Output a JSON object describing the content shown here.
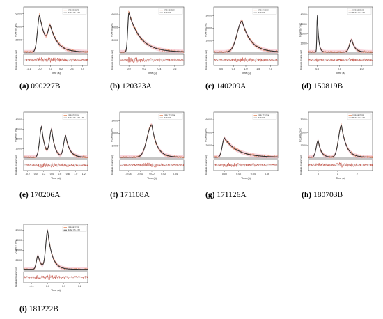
{
  "colors": {
    "data": "#e07a4a",
    "model": "#333333",
    "band": "#f2b3c1",
    "resid": "#c0392b",
    "axis": "#444444"
  },
  "chart_data": [
    {
      "type": "line",
      "label": "(a)",
      "burst": "090227B",
      "legend": [
        "GRB 090227B",
        "Model: P1 + P2"
      ],
      "xticks": [
        "-0.1",
        "0.0",
        "0.1",
        "0.2",
        "0.3",
        "0.4"
      ],
      "xlim": [
        -0.15,
        0.45
      ],
      "yticks": [
        "20000",
        "40000",
        "60000"
      ],
      "ylim": [
        0,
        70000
      ],
      "ylabel": "Counts / sec",
      "xlabel": "Time (s)",
      "resid_label": "Residuals (Counts / sec)",
      "pulses": [
        {
          "A": 56000,
          "mu": 0.0,
          "s": 0.02,
          "d": 0.06
        },
        {
          "A": 30000,
          "mu": 0.1,
          "s": 0.02,
          "d": 0.07
        }
      ]
    },
    {
      "type": "line",
      "label": "(b)",
      "burst": "120323A",
      "legend": [
        "GRB 120323A",
        "Model: P"
      ],
      "xticks": [
        "0.0",
        "0.2",
        "0.4",
        "0.6"
      ],
      "xlim": [
        -0.12,
        0.72
      ],
      "yticks": [
        "20000",
        "40000",
        "60000"
      ],
      "ylim": [
        0,
        72000
      ],
      "ylabel": "Counts / sec",
      "xlabel": "Time (s)",
      "resid_label": "Residuals (Counts / sec)",
      "pulses": [
        {
          "A": 62000,
          "mu": 0.0,
          "s": 0.015,
          "d": 0.15
        }
      ]
    },
    {
      "type": "line",
      "label": "(c)",
      "burst": "140209A",
      "legend": [
        "GRB 140209A",
        "Model: P"
      ],
      "xticks": [
        "0.0",
        "0.5",
        "1.0",
        "1.5",
        "2.0"
      ],
      "xlim": [
        -0.3,
        2.3
      ],
      "yticks": [
        "10000",
        "20000",
        "30000"
      ],
      "ylim": [
        0,
        37000
      ],
      "ylabel": "Counts / sec",
      "xlabel": "Time (s)",
      "resid_label": "Residuals (Counts / sec)",
      "pulses": [
        {
          "A": 25000,
          "mu": 0.85,
          "s": 0.2,
          "d": 0.35
        }
      ]
    },
    {
      "type": "line",
      "label": "(d)",
      "burst": "150819B",
      "legend": [
        "GRB 150819B",
        "Model: P1 + P2"
      ],
      "xticks": [
        "0.0",
        "0.5",
        "1.0"
      ],
      "xlim": [
        -0.2,
        1.25
      ],
      "yticks": [
        "10000",
        "20000",
        "30000",
        "40000"
      ],
      "ylim": [
        0,
        48000
      ],
      "ylabel": "Counts / sec",
      "xlabel": "Time (s)",
      "resid_label": "Residuals (Counts / sec)",
      "pulses": [
        {
          "A": 40000,
          "mu": 0.0,
          "s": 0.01,
          "d": 0.03
        },
        {
          "A": 13000,
          "mu": 0.78,
          "s": 0.05,
          "d": 0.07
        }
      ]
    },
    {
      "type": "line",
      "label": "(e)",
      "burst": "170206A",
      "legend": [
        "GRB 170206A",
        "Model: P1 + P2 + P3"
      ],
      "xticks": [
        "-0.2",
        "0.0",
        "0.2",
        "0.4",
        "0.6",
        "0.8",
        "1.0",
        "1.2"
      ],
      "xlim": [
        -0.3,
        1.3
      ],
      "yticks": [
        "10000",
        "20000",
        "30000",
        "40000"
      ],
      "ylim": [
        0,
        48000
      ],
      "ylabel": "Counts / sec",
      "xlabel": "Time (s)",
      "resid_label": "Residuals (Counts / sec)",
      "pulses": [
        {
          "A": 32000,
          "mu": 0.15,
          "s": 0.05,
          "d": 0.08
        },
        {
          "A": 28000,
          "mu": 0.4,
          "s": 0.05,
          "d": 0.08
        },
        {
          "A": 22000,
          "mu": 0.75,
          "s": 0.05,
          "d": 0.1
        }
      ]
    },
    {
      "type": "line",
      "label": "(f)",
      "burst": "171108A",
      "legend": [
        "GRB 171108A",
        "Model: P"
      ],
      "xticks": [
        "-0.04",
        "-0.02",
        "0.00",
        "0.02",
        "0.04"
      ],
      "xlim": [
        -0.055,
        0.055
      ],
      "yticks": [
        "10000",
        "20000",
        "30000"
      ],
      "ylim": [
        0,
        37000
      ],
      "ylabel": "Counts / sec",
      "xlabel": "Time (s)",
      "resid_label": "Residuals (Counts / sec)",
      "pulses": [
        {
          "A": 26000,
          "mu": 0.0,
          "s": 0.008,
          "d": 0.009
        }
      ]
    },
    {
      "type": "line",
      "label": "(g)",
      "burst": "171126A",
      "legend": [
        "GRB 171126A",
        "Model: P"
      ],
      "xticks": [
        "0.00",
        "0.02",
        "0.04",
        "0.06"
      ],
      "xlim": [
        -0.015,
        0.075
      ],
      "yticks": [
        "20000",
        "40000",
        "60000"
      ],
      "ylim": [
        0,
        72000
      ],
      "ylabel": "Counts / sec",
      "xlabel": "Time (s)",
      "resid_label": "Residuals (Counts / sec)",
      "pulses": [
        {
          "A": 30000,
          "mu": 0.0,
          "s": 0.003,
          "d": 0.018
        }
      ]
    },
    {
      "type": "line",
      "label": "(h)",
      "burst": "180703B",
      "legend": [
        "GRB 180703B",
        "Model: P1 + P2"
      ],
      "xticks": [
        "0",
        "1",
        "2"
      ],
      "xlim": [
        -0.5,
        2.8
      ],
      "yticks": [
        "10000",
        "20000",
        "30000"
      ],
      "ylim": [
        0,
        36000
      ],
      "ylabel": "Counts / sec",
      "xlabel": "Time (s)",
      "resid_label": "Residuals (Counts / sec)",
      "pulses": [
        {
          "A": 13000,
          "mu": 0.0,
          "s": 0.1,
          "d": 0.15
        },
        {
          "A": 25000,
          "mu": 1.2,
          "s": 0.15,
          "d": 0.25
        }
      ]
    },
    {
      "type": "line",
      "label": "(i)",
      "burst": "181222B",
      "legend": [
        "GRB 181222B",
        "Model: P1 + P2"
      ],
      "xticks": [
        "-0.1",
        "0.0",
        "0.1",
        "0.2"
      ],
      "xlim": [
        -0.15,
        0.25
      ],
      "yticks": [
        "20000",
        "40000",
        "60000",
        "80000"
      ],
      "ylim": [
        0,
        92000
      ],
      "ylabel": "Counts / sec",
      "xlabel": "Time (s)",
      "resid_label": "Residuals (Counts / sec)",
      "pulses": [
        {
          "A": 28000,
          "mu": -0.06,
          "s": 0.01,
          "d": 0.02
        },
        {
          "A": 76000,
          "mu": 0.0,
          "s": 0.012,
          "d": 0.028
        }
      ]
    }
  ]
}
